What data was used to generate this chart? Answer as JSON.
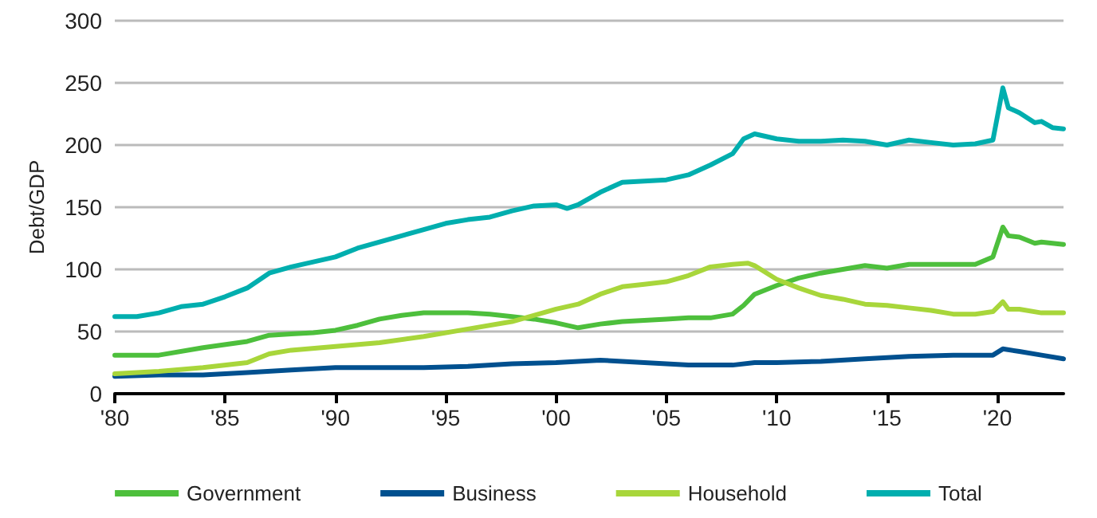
{
  "chart_data": {
    "type": "line",
    "ylabel": "Debt/GDP",
    "xlim": [
      1980,
      2023
    ],
    "xticks": [
      {
        "value": 1980,
        "label": "'80"
      },
      {
        "value": 1985,
        "label": "'85"
      },
      {
        "value": 1990,
        "label": "'90"
      },
      {
        "value": 1995,
        "label": "'95"
      },
      {
        "value": 2000,
        "label": "'00"
      },
      {
        "value": 2005,
        "label": "'05"
      },
      {
        "value": 2010,
        "label": "'10"
      },
      {
        "value": 2015,
        "label": "'15"
      },
      {
        "value": 2020,
        "label": "'20"
      }
    ],
    "ylim": [
      0,
      300
    ],
    "yticks": [
      0,
      50,
      100,
      150,
      200,
      250,
      300
    ],
    "grid": "y",
    "legend": "bottom",
    "marker": "none",
    "line_style": "solid",
    "series": [
      {
        "name": "Government",
        "color": "#4dbf3c",
        "x": [
          1980,
          1982,
          1984,
          1986,
          1987,
          1988,
          1989,
          1990,
          1991,
          1992,
          1993,
          1994,
          1995,
          1996,
          1997,
          1998,
          1999,
          2000,
          2001,
          2002,
          2003,
          2004,
          2005,
          2006,
          2007,
          2008,
          2008.5,
          2009,
          2010,
          2011,
          2012,
          2013,
          2014,
          2015,
          2016,
          2017,
          2018,
          2019,
          2019.8,
          2020.25,
          2020.5,
          2021,
          2021.7,
          2022,
          2023
        ],
        "values": [
          31,
          31,
          37,
          42,
          47,
          48,
          49,
          51,
          55,
          60,
          63,
          65,
          65,
          65,
          64,
          62,
          60,
          57,
          53,
          56,
          58,
          59,
          60,
          61,
          61,
          64,
          71,
          80,
          87,
          93,
          97,
          100,
          103,
          101,
          104,
          104,
          104,
          104,
          110,
          134,
          127,
          126,
          121,
          122,
          120
        ]
      },
      {
        "name": "Business",
        "color": "#00508f",
        "x": [
          1980,
          1982,
          1984,
          1986,
          1988,
          1990,
          1992,
          1994,
          1996,
          1998,
          2000,
          2002,
          2004,
          2006,
          2008,
          2009,
          2010,
          2012,
          2014,
          2016,
          2018,
          2019.8,
          2020.25,
          2021,
          2022,
          2023
        ],
        "values": [
          14,
          15,
          15,
          17,
          19,
          21,
          21,
          21,
          22,
          24,
          25,
          27,
          25,
          23,
          23,
          25,
          25,
          26,
          28,
          30,
          31,
          31,
          36,
          34,
          31,
          28
        ]
      },
      {
        "name": "Household",
        "color": "#a8d63b",
        "x": [
          1980,
          1982,
          1984,
          1986,
          1987,
          1988,
          1990,
          1992,
          1994,
          1996,
          1998,
          2000,
          2001,
          2002,
          2003,
          2004,
          2005,
          2006,
          2007,
          2008,
          2008.7,
          2009,
          2010,
          2011,
          2012,
          2013,
          2014,
          2015,
          2016,
          2017,
          2018,
          2019,
          2019.8,
          2020.25,
          2020.5,
          2021,
          2022,
          2023
        ],
        "values": [
          16,
          18,
          21,
          25,
          32,
          35,
          38,
          41,
          46,
          52,
          58,
          68,
          72,
          80,
          86,
          88,
          90,
          95,
          102,
          104,
          105,
          103,
          92,
          85,
          79,
          76,
          72,
          71,
          69,
          67,
          64,
          64,
          66,
          74,
          68,
          68,
          65,
          65
        ]
      },
      {
        "name": "Total",
        "color": "#00aeae",
        "x": [
          1980,
          1981,
          1982,
          1983,
          1984,
          1985,
          1986,
          1987,
          1988,
          1989,
          1990,
          1991,
          1992,
          1993,
          1994,
          1995,
          1996,
          1997,
          1998,
          1999,
          2000,
          2000.5,
          2001,
          2002,
          2003,
          2004,
          2005,
          2006,
          2007,
          2008,
          2008.5,
          2009,
          2010,
          2011,
          2012,
          2013,
          2014,
          2015,
          2016,
          2017,
          2018,
          2019,
          2019.8,
          2020.25,
          2020.5,
          2021,
          2021.7,
          2022,
          2022.5,
          2023
        ],
        "values": [
          62,
          62,
          65,
          70,
          72,
          78,
          85,
          97,
          102,
          106,
          110,
          117,
          122,
          127,
          132,
          137,
          140,
          142,
          147,
          151,
          152,
          149,
          152,
          162,
          170,
          171,
          172,
          176,
          184,
          193,
          205,
          209,
          205,
          203,
          203,
          204,
          203,
          200,
          204,
          202,
          200,
          201,
          204,
          246,
          230,
          226,
          218,
          219,
          214,
          213
        ]
      }
    ]
  }
}
